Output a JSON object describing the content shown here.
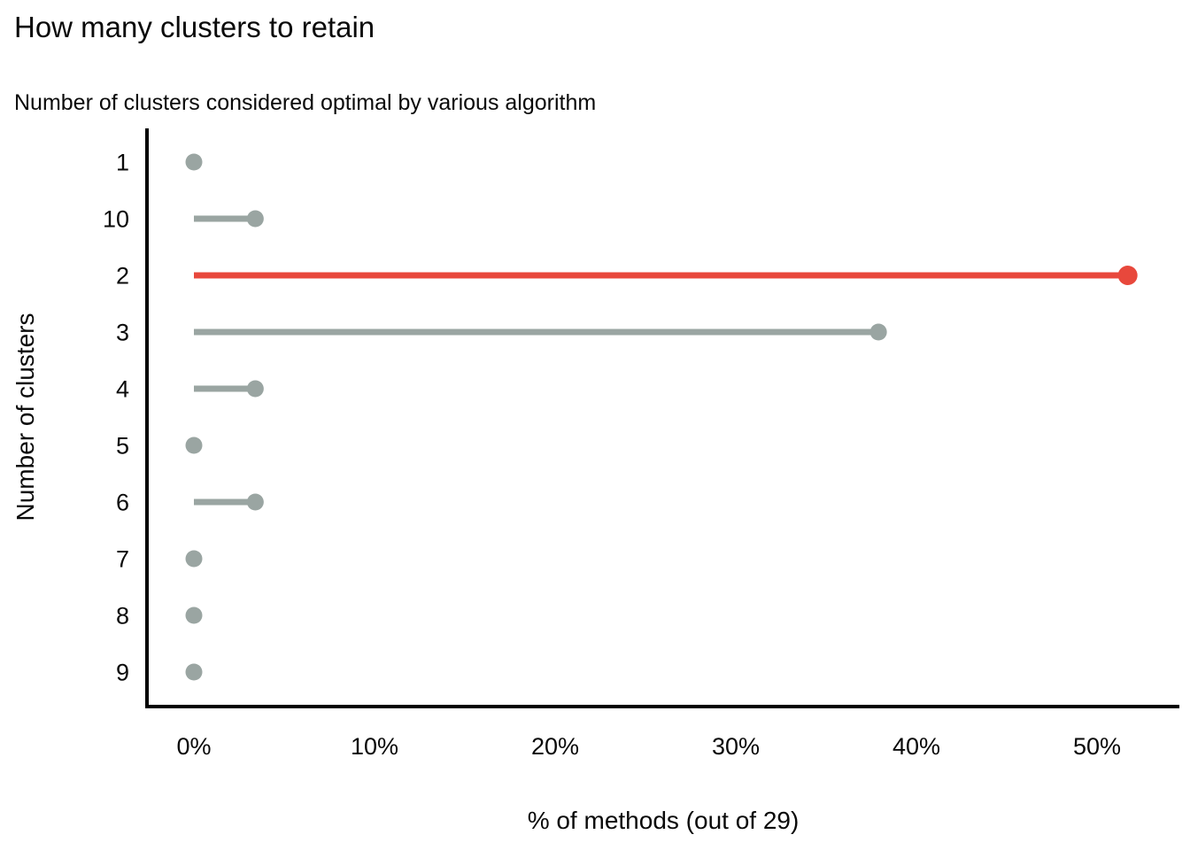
{
  "chart_data": {
    "type": "lollipop",
    "orientation": "horizontal",
    "title": "How many clusters to retain",
    "subtitle": "Number of clusters considered optimal by various algorithm",
    "xlabel": "% of methods (out of 29)",
    "ylabel": "Number of clusters",
    "categories": [
      "1",
      "10",
      "2",
      "3",
      "4",
      "5",
      "6",
      "7",
      "8",
      "9"
    ],
    "series": [
      {
        "name": "% of methods",
        "values": [
          0,
          3.4,
          51.7,
          37.9,
          3.4,
          0,
          3.4,
          0,
          0,
          0
        ]
      }
    ],
    "counts_out_of_29": [
      0,
      1,
      15,
      11,
      1,
      0,
      1,
      0,
      0,
      0
    ],
    "highlight_category": "2",
    "x_ticks": [
      {
        "value": 0,
        "label": "0%"
      },
      {
        "value": 10,
        "label": "10%"
      },
      {
        "value": 20,
        "label": "20%"
      },
      {
        "value": 30,
        "label": "30%"
      },
      {
        "value": 40,
        "label": "40%"
      },
      {
        "value": 50,
        "label": "50%"
      }
    ],
    "xlim": [
      0,
      54.6
    ],
    "grid": false,
    "legend_position": "none",
    "colors": {
      "lollipop_default": "#9aa5a2",
      "lollipop_highlight": "#e8483c",
      "axis": "#000000",
      "text": "#0a0a0a",
      "background": "#ffffff"
    }
  }
}
